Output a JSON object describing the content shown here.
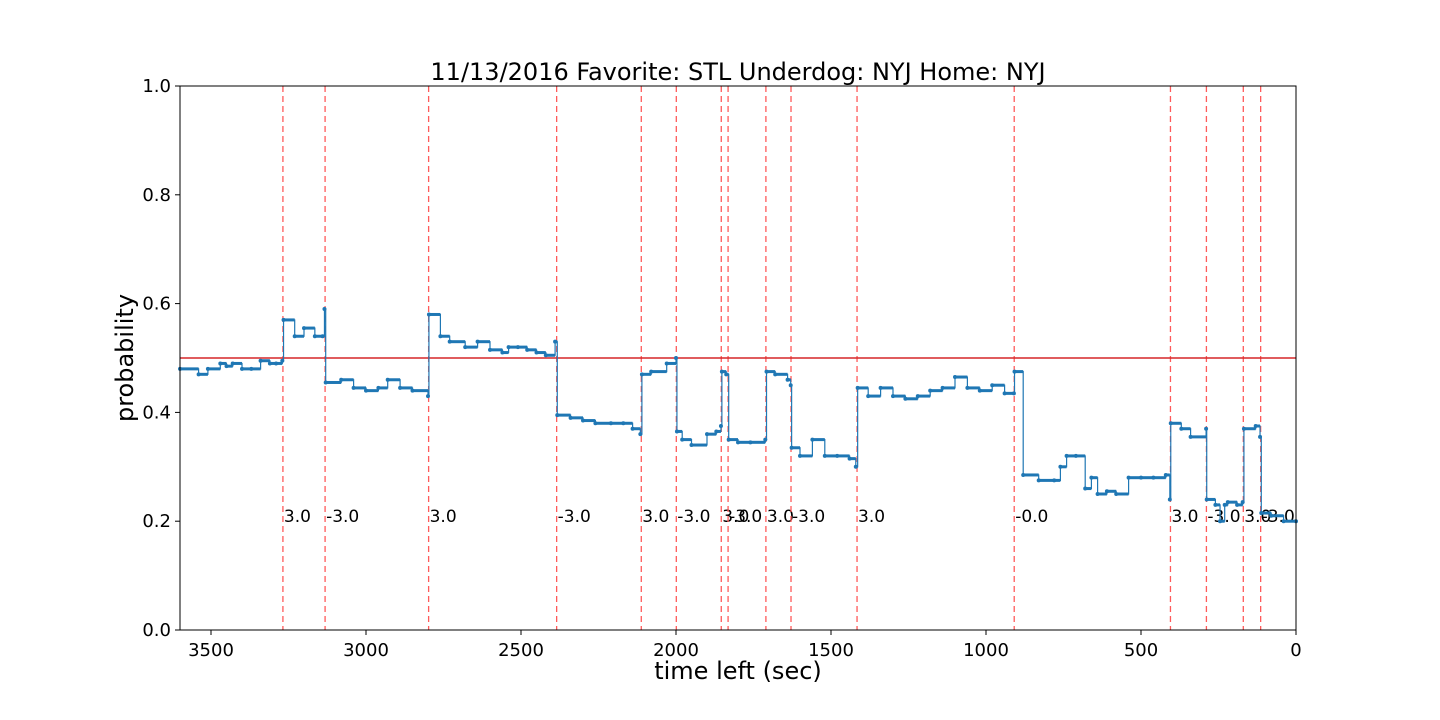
{
  "chart_data": {
    "type": "line",
    "title": "11/13/2016 Favorite: STL Underdog: NYJ Home: NYJ",
    "xlabel": "time left (sec)",
    "ylabel": "probability",
    "xlim": [
      3600,
      0
    ],
    "ylim": [
      0.0,
      1.0
    ],
    "x_ticks": [
      3500,
      3000,
      2500,
      2000,
      1500,
      1000,
      500,
      0
    ],
    "y_ticks": [
      0.0,
      0.2,
      0.4,
      0.6,
      0.8,
      1.0
    ],
    "reference_line": {
      "y": 0.5,
      "color": "#d62728"
    },
    "series": [
      {
        "color": "#1f77b4",
        "x": [
          3600,
          3540,
          3510,
          3470,
          3450,
          3430,
          3400,
          3370,
          3340,
          3310,
          3290,
          3270,
          3266,
          3230,
          3200,
          3165,
          3140,
          3134,
          3130,
          3080,
          3040,
          3000,
          2960,
          2930,
          2890,
          2850,
          2800,
          2797,
          2760,
          2730,
          2680,
          2640,
          2600,
          2560,
          2540,
          2510,
          2480,
          2450,
          2420,
          2390,
          2383,
          2340,
          2300,
          2260,
          2210,
          2170,
          2140,
          2115,
          2110,
          2080,
          2030,
          2000,
          1997,
          1980,
          1950,
          1900,
          1870,
          1855,
          1852,
          1838,
          1830,
          1800,
          1760,
          1712,
          1708,
          1680,
          1640,
          1630,
          1627,
          1600,
          1560,
          1520,
          1480,
          1440,
          1420,
          1414,
          1380,
          1340,
          1300,
          1260,
          1220,
          1180,
          1140,
          1100,
          1060,
          1020,
          980,
          940,
          910,
          908,
          880,
          830,
          780,
          760,
          740,
          710,
          680,
          660,
          640,
          610,
          580,
          540,
          500,
          460,
          420,
          407,
          404,
          370,
          340,
          290,
          288,
          260,
          245,
          230,
          220,
          190,
          172,
          168,
          130,
          116,
          112,
          80,
          40,
          0
        ],
        "y": [
          0.48,
          0.47,
          0.48,
          0.49,
          0.485,
          0.49,
          0.48,
          0.48,
          0.495,
          0.49,
          0.49,
          0.495,
          0.57,
          0.54,
          0.555,
          0.54,
          0.54,
          0.59,
          0.455,
          0.46,
          0.445,
          0.44,
          0.445,
          0.46,
          0.445,
          0.44,
          0.43,
          0.58,
          0.54,
          0.53,
          0.52,
          0.53,
          0.515,
          0.51,
          0.52,
          0.52,
          0.515,
          0.51,
          0.505,
          0.53,
          0.395,
          0.39,
          0.385,
          0.38,
          0.38,
          0.38,
          0.37,
          0.36,
          0.47,
          0.475,
          0.49,
          0.5,
          0.365,
          0.35,
          0.34,
          0.36,
          0.365,
          0.375,
          0.475,
          0.47,
          0.35,
          0.345,
          0.345,
          0.35,
          0.475,
          0.47,
          0.46,
          0.45,
          0.335,
          0.32,
          0.35,
          0.32,
          0.32,
          0.315,
          0.3,
          0.445,
          0.43,
          0.445,
          0.43,
          0.425,
          0.43,
          0.44,
          0.445,
          0.465,
          0.445,
          0.44,
          0.45,
          0.435,
          0.435,
          0.475,
          0.285,
          0.275,
          0.275,
          0.3,
          0.32,
          0.32,
          0.26,
          0.28,
          0.25,
          0.255,
          0.25,
          0.28,
          0.28,
          0.28,
          0.285,
          0.24,
          0.38,
          0.37,
          0.355,
          0.37,
          0.24,
          0.23,
          0.2,
          0.23,
          0.235,
          0.23,
          0.235,
          0.37,
          0.375,
          0.355,
          0.215,
          0.21,
          0.2,
          0.2
        ]
      }
    ],
    "events": [
      {
        "x": 3268,
        "label": "3.0"
      },
      {
        "x": 3132,
        "label": "-3.0"
      },
      {
        "x": 2798,
        "label": "3.0"
      },
      {
        "x": 2385,
        "label": "-3.0"
      },
      {
        "x": 2112,
        "label": "3.0"
      },
      {
        "x": 1999,
        "label": "-3.0"
      },
      {
        "x": 1854,
        "label": "3.0"
      },
      {
        "x": 1832,
        "label": "-3.0"
      },
      {
        "x": 1710,
        "label": "3.0"
      },
      {
        "x": 1629,
        "label": "-3.0"
      },
      {
        "x": 1416,
        "label": "3.0"
      },
      {
        "x": 909,
        "label": "-0.0"
      },
      {
        "x": 405,
        "label": "3.0"
      },
      {
        "x": 289,
        "label": "-3.0"
      },
      {
        "x": 170,
        "label": "3.0"
      },
      {
        "x": 114,
        "label": "-3.0"
      }
    ],
    "event_label_y": 0.2,
    "grid": false,
    "legend": "none"
  }
}
